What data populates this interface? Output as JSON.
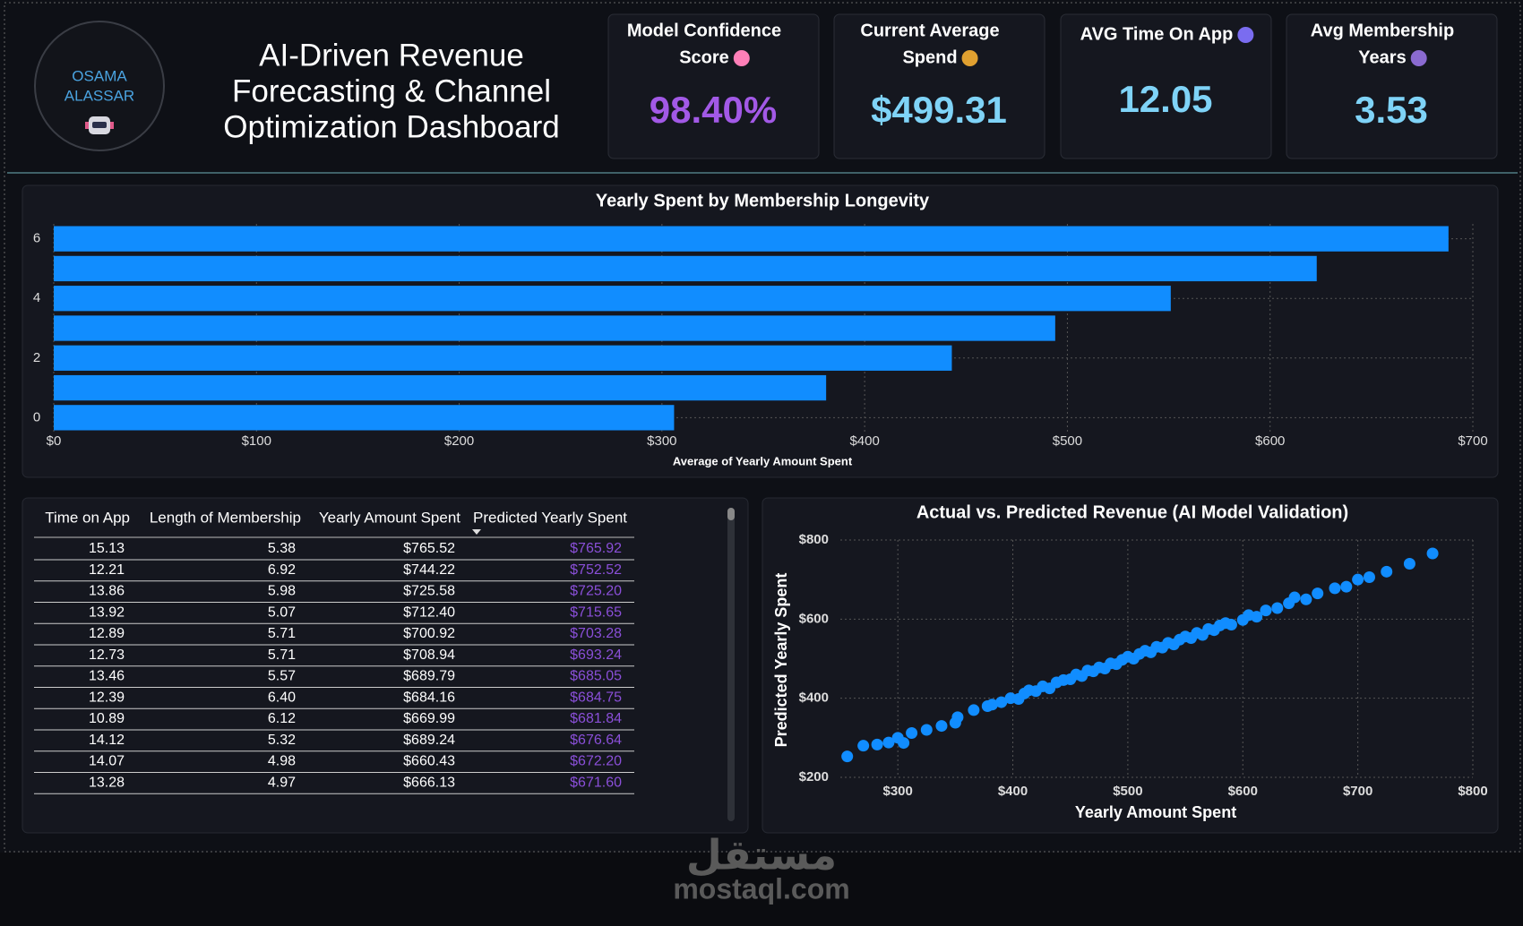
{
  "header": {
    "author_lines": [
      "OSAMA",
      "ALASSAR"
    ],
    "title_lines": [
      "AI-Driven Revenue",
      "Forecasting & Channel",
      "Optimization Dashboard"
    ]
  },
  "kpis": [
    {
      "title_lines": [
        "Model Confidence",
        "Score"
      ],
      "value": "98.40%",
      "color": "#a259e6"
    },
    {
      "title_lines": [
        "Current Average",
        "Spend"
      ],
      "value": "$499.31",
      "color": "#7fd3f7"
    },
    {
      "title_lines": [
        "AVG Time On App"
      ],
      "value": "12.05",
      "color": "#7fd3f7"
    },
    {
      "title_lines": [
        "Avg Membership",
        "Years"
      ],
      "value": "3.53",
      "color": "#7fd3f7"
    }
  ],
  "chart_data": [
    {
      "type": "bar",
      "orientation": "horizontal",
      "title": "Yearly Spent by Membership Longevity",
      "x_label": "Average of Yearly Amount Spent",
      "color": "#118dff",
      "y": [
        0,
        1,
        2,
        3,
        4,
        5,
        6
      ],
      "values": [
        306,
        381,
        443,
        494,
        551,
        623,
        688
      ],
      "xlim": [
        0,
        700
      ],
      "xticks": [
        {
          "value": 0,
          "label": "$0"
        },
        {
          "value": 100,
          "label": "$100"
        },
        {
          "value": 200,
          "label": "$200"
        },
        {
          "value": 300,
          "label": "$300"
        },
        {
          "value": 400,
          "label": "$400"
        },
        {
          "value": 500,
          "label": "$500"
        },
        {
          "value": 600,
          "label": "$600"
        },
        {
          "value": 700,
          "label": "$700"
        }
      ],
      "ylim": [
        -0.5,
        6.5
      ],
      "yticks": [
        0,
        2,
        4,
        6
      ],
      "grid": true
    },
    {
      "type": "scatter",
      "title": "Actual vs. Predicted Revenue (AI Model Validation)",
      "x_label": "Yearly Amount Spent",
      "y_label": "Predicted Yearly Spent",
      "color": "#118dff",
      "x": [
        256,
        270,
        282,
        292,
        300,
        305,
        312,
        325,
        338,
        350,
        352,
        366,
        378,
        382,
        390,
        398,
        405,
        410,
        414,
        420,
        426,
        432,
        438,
        444,
        450,
        455,
        460,
        465,
        470,
        475,
        480,
        485,
        490,
        495,
        500,
        505,
        510,
        515,
        520,
        525,
        530,
        535,
        540,
        545,
        550,
        555,
        560,
        565,
        570,
        575,
        580,
        585,
        590,
        600,
        605,
        612,
        620,
        630,
        640,
        645,
        655,
        665,
        680,
        690,
        700,
        710,
        725,
        745,
        765
      ],
      "values": [
        253,
        280,
        283,
        288,
        300,
        287,
        312,
        320,
        330,
        338,
        352,
        370,
        380,
        384,
        390,
        400,
        398,
        412,
        420,
        418,
        430,
        425,
        440,
        446,
        448,
        460,
        456,
        470,
        468,
        478,
        475,
        488,
        486,
        497,
        505,
        500,
        512,
        520,
        516,
        530,
        528,
        540,
        536,
        548,
        556,
        552,
        565,
        560,
        575,
        572,
        584,
        590,
        586,
        598,
        610,
        606,
        622,
        628,
        640,
        655,
        650,
        665,
        678,
        682,
        700,
        706,
        720,
        740,
        766
      ],
      "xlim": [
        250,
        800
      ],
      "xticks": [
        {
          "value": 300,
          "label": "$300"
        },
        {
          "value": 400,
          "label": "$400"
        },
        {
          "value": 500,
          "label": "$500"
        },
        {
          "value": 600,
          "label": "$600"
        },
        {
          "value": 700,
          "label": "$700"
        },
        {
          "value": 800,
          "label": "$800"
        }
      ],
      "ylim": [
        200,
        800
      ],
      "yticks": [
        {
          "value": 200,
          "label": "$200"
        },
        {
          "value": 400,
          "label": "$400"
        },
        {
          "value": 600,
          "label": "$600"
        },
        {
          "value": 800,
          "label": "$800"
        }
      ],
      "grid": true
    }
  ],
  "table": {
    "columns": [
      "Time on App",
      "Length of Membership",
      "Yearly Amount Spent",
      "Predicted Yearly Spent"
    ],
    "rows": [
      [
        "15.13",
        "5.38",
        "$765.52",
        "$765.92"
      ],
      [
        "12.21",
        "6.92",
        "$744.22",
        "$752.52"
      ],
      [
        "13.86",
        "5.98",
        "$725.58",
        "$725.20"
      ],
      [
        "13.92",
        "5.07",
        "$712.40",
        "$715.65"
      ],
      [
        "12.89",
        "5.71",
        "$700.92",
        "$703.28"
      ],
      [
        "12.73",
        "5.71",
        "$708.94",
        "$693.24"
      ],
      [
        "13.46",
        "5.57",
        "$689.79",
        "$685.05"
      ],
      [
        "12.39",
        "6.40",
        "$684.16",
        "$684.75"
      ],
      [
        "10.89",
        "6.12",
        "$669.99",
        "$681.84"
      ],
      [
        "14.12",
        "5.32",
        "$689.24",
        "$676.64"
      ],
      [
        "14.07",
        "4.98",
        "$660.43",
        "$672.20"
      ],
      [
        "13.28",
        "4.97",
        "$666.13",
        "$671.60"
      ]
    ]
  },
  "watermark": {
    "arabic": "مستقل",
    "site": "mostaql.com"
  }
}
